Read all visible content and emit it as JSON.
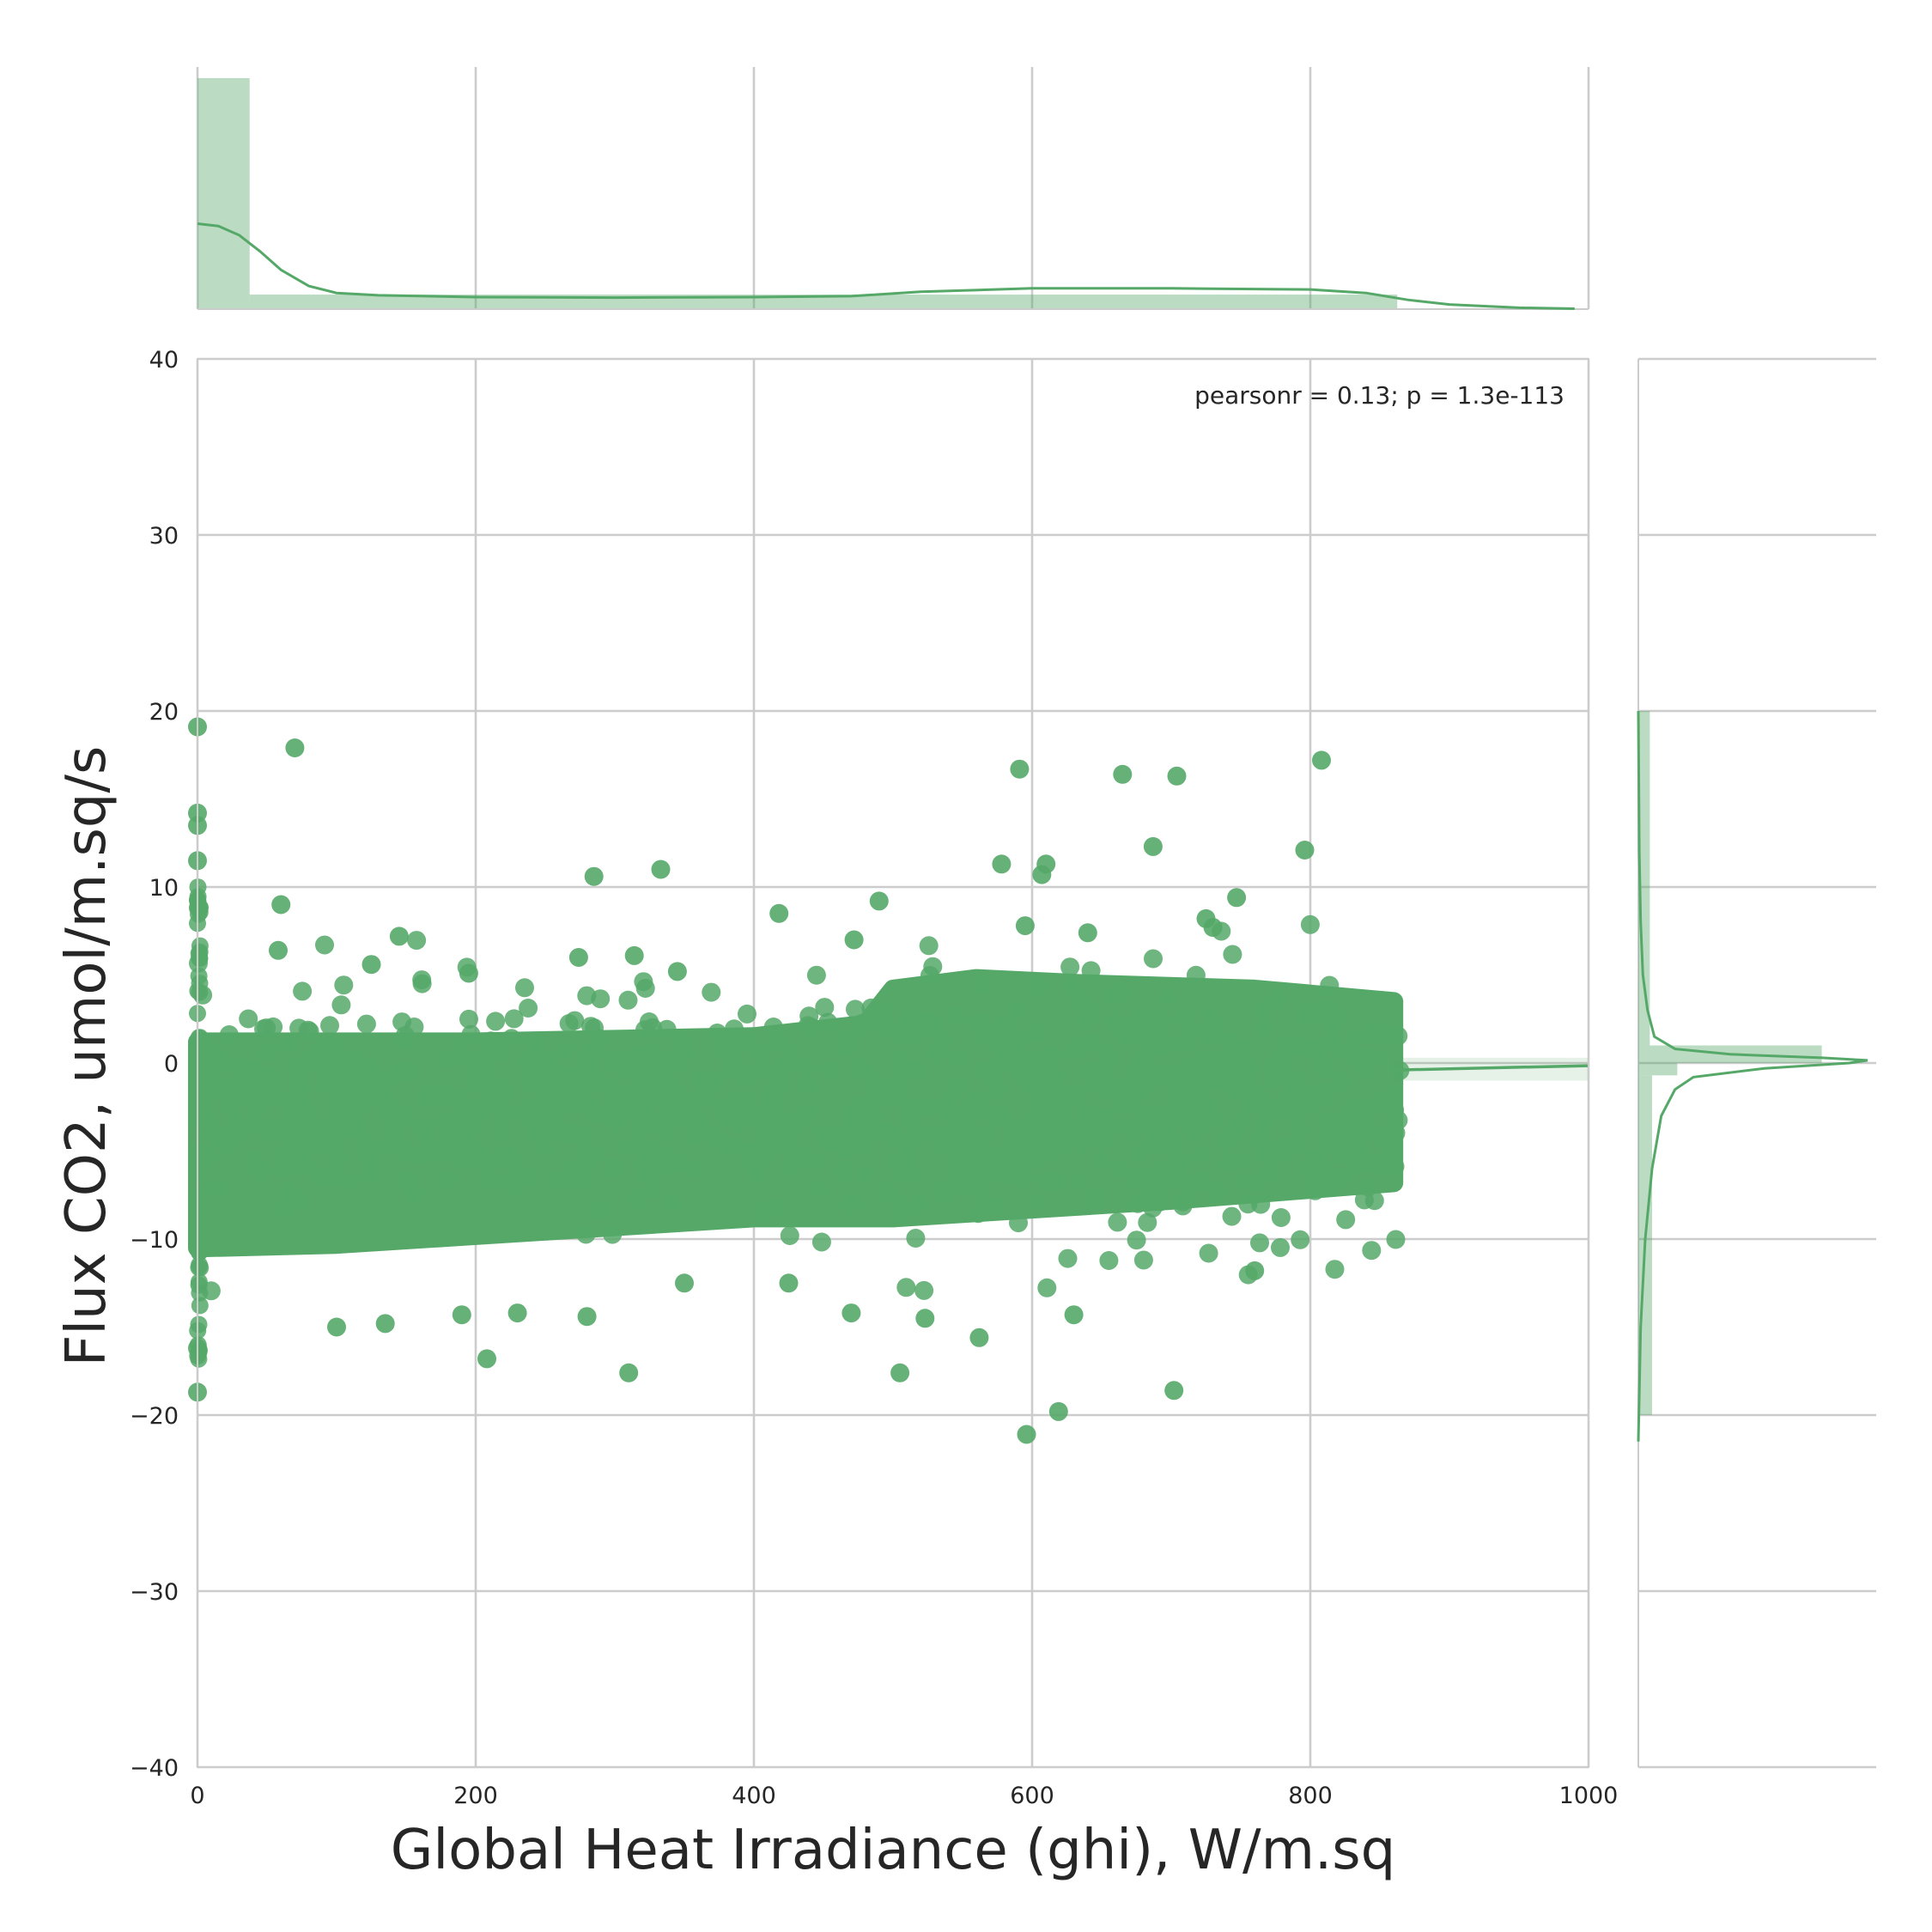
{
  "chart_data": {
    "type": "scatter",
    "xlabel": "Global Heat Irradiance (ghi), W/m.sq",
    "ylabel": "Flux CO2, umol/m.sq/s",
    "annotation": "pearsonr = 0.13; p = 1.3e-113",
    "xlim": [
      0,
      1000
    ],
    "ylim": [
      -40,
      40
    ],
    "x_ticks": [
      "0",
      "200",
      "400",
      "600",
      "800",
      "1000"
    ],
    "y_ticks": [
      "40",
      "30",
      "20",
      "10",
      "0",
      "−10",
      "−20",
      "−30",
      "−40"
    ],
    "grid": true,
    "color": "#55a868",
    "marginal_x_hist": {
      "bin_edges": [
        0,
        37.5,
        862.5
      ],
      "heights": [
        1.0,
        0.063
      ],
      "kde_x": [
        0,
        15,
        30,
        45,
        60,
        80,
        100,
        130,
        200,
        300,
        400,
        470,
        520,
        600,
        700,
        800,
        840,
        870,
        900,
        950,
        990
      ],
      "kde_y": [
        0.37,
        0.36,
        0.32,
        0.25,
        0.17,
        0.1,
        0.07,
        0.06,
        0.052,
        0.05,
        0.052,
        0.056,
        0.075,
        0.09,
        0.09,
        0.085,
        0.07,
        0.04,
        0.02,
        0.006,
        0.002
      ]
    },
    "marginal_y_hist": {
      "bins": [
        {
          "from": -20,
          "to": -0.7,
          "height": 0.06
        },
        {
          "from": -0.7,
          "to": 0,
          "height": 0.17
        },
        {
          "from": 0,
          "to": 1.0,
          "height": 0.8
        },
        {
          "from": 1.0,
          "to": 20,
          "height": 0.05
        }
      ],
      "kde_y": [
        -21.5,
        -15,
        -10,
        -6,
        -3,
        -1.5,
        -0.8,
        -0.3,
        0,
        0.15,
        0.3,
        0.5,
        0.8,
        1.5,
        3,
        5,
        8,
        12,
        20
      ],
      "kde_x": [
        0.0,
        0.01,
        0.03,
        0.06,
        0.1,
        0.16,
        0.24,
        0.55,
        0.92,
        1.0,
        0.8,
        0.4,
        0.16,
        0.07,
        0.04,
        0.02,
        0.01,
        0.004,
        0.0
      ]
    },
    "regression_line": {
      "x": [
        860,
        1000
      ],
      "y": [
        -0.4,
        -0.15
      ]
    },
    "outliers": [
      [
        0,
        19.1
      ],
      [
        0,
        14.2
      ],
      [
        0,
        13.5
      ],
      [
        0,
        11.5
      ],
      [
        70,
        17.9
      ],
      [
        60,
        9.0
      ],
      [
        58,
        6.4
      ],
      [
        0,
        -18.7
      ],
      [
        0,
        -16.2
      ],
      [
        100,
        -15.0
      ],
      [
        135,
        -14.8
      ],
      [
        145,
        7.2
      ],
      [
        125,
        5.6
      ],
      [
        195,
        5.1
      ],
      [
        285,
        10.6
      ],
      [
        333,
        11.0
      ],
      [
        314,
        6.1
      ],
      [
        274,
        6.0
      ],
      [
        345,
        5.2
      ],
      [
        310,
        -17.6
      ],
      [
        208,
        -16.8
      ],
      [
        280,
        -14.4
      ],
      [
        190,
        -14.3
      ],
      [
        418,
        8.5
      ],
      [
        472,
        7.0
      ],
      [
        490,
        9.2
      ],
      [
        505,
        -17.6
      ],
      [
        523,
        -14.5
      ],
      [
        562,
        -15.6
      ],
      [
        596,
        -21.1
      ],
      [
        619,
        -19.8
      ],
      [
        630,
        -14.3
      ],
      [
        591,
        16.7
      ],
      [
        578,
        11.3
      ],
      [
        607,
        10.7
      ],
      [
        610,
        11.3
      ],
      [
        665,
        16.4
      ],
      [
        687,
        12.3
      ],
      [
        704,
        16.3
      ],
      [
        702,
        -18.6
      ],
      [
        808,
        17.2
      ],
      [
        796,
        12.1
      ],
      [
        747,
        9.4
      ],
      [
        640,
        7.4
      ],
      [
        595,
        7.8
      ],
      [
        725,
        8.2
      ],
      [
        730,
        7.7
      ],
      [
        470,
        -14.2
      ],
      [
        425,
        -12.5
      ],
      [
        760,
        -11.8
      ],
      [
        350,
        -12.5
      ],
      [
        230,
        -14.2
      ]
    ]
  }
}
